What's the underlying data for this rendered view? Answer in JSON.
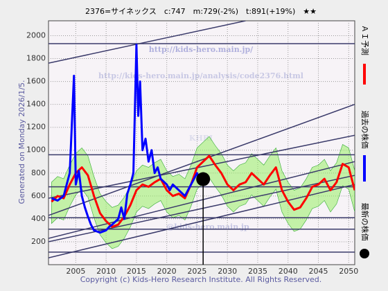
{
  "chart_data": {
    "type": "line",
    "title": "2376=サイネックス　c:747　m:729(-2%)　t:891(+19%)　★★",
    "side_note": "Generated on Monday 2026/1/5.",
    "footer": "Copyright (c) Kids-Hero Research Institute. All Rights Reserved.",
    "watermarks": [
      "http://kids-hero.main.jp/",
      "http://kids-hero.main.jp/analysis/code2376.html",
      "KHRI",
      "@kids-hero.main.jp"
    ],
    "xlim": [
      2000.5,
      2051
    ],
    "ylim": [
      0,
      2130
    ],
    "xticks": [
      2005,
      2010,
      2015,
      2020,
      2025,
      2030,
      2035,
      2040,
      2045,
      2050
    ],
    "yticks": [
      200,
      400,
      600,
      800,
      1000,
      1200,
      1400,
      1600,
      1800,
      2000
    ],
    "grid": true,
    "series": [
      {
        "name": "ＡＩ予測",
        "color": "#ff0000",
        "x": [
          2001,
          2002,
          2003,
          2004,
          2005,
          2006,
          2007,
          2008,
          2009,
          2010,
          2011,
          2012,
          2013,
          2014,
          2015,
          2016,
          2017,
          2018,
          2019,
          2020,
          2021,
          2022,
          2023,
          2024,
          2025,
          2026,
          2027,
          2028,
          2029,
          2030,
          2031,
          2032,
          2033,
          2034,
          2035,
          2036,
          2037,
          2038,
          2039,
          2040,
          2041,
          2042,
          2043,
          2044,
          2045,
          2046,
          2047,
          2048,
          2049,
          2050,
          2051
        ],
        "values": [
          550,
          600,
          580,
          700,
          800,
          850,
          780,
          600,
          450,
          380,
          330,
          350,
          420,
          520,
          650,
          700,
          680,
          720,
          750,
          650,
          600,
          620,
          580,
          700,
          850,
          900,
          950,
          870,
          800,
          700,
          650,
          700,
          720,
          800,
          750,
          700,
          780,
          850,
          650,
          550,
          480,
          500,
          580,
          680,
          700,
          750,
          650,
          720,
          880,
          850,
          650
        ]
      },
      {
        "name": "過去の株価",
        "color": "#0000ff",
        "x": [
          2001,
          2002,
          2003,
          2003.5,
          2004,
          2004.7,
          2005,
          2005.5,
          2006,
          2006.5,
          2007,
          2007.5,
          2008,
          2009,
          2010,
          2010.5,
          2011,
          2012,
          2012.5,
          2013,
          2013.5,
          2014,
          2014.5,
          2015,
          2015.3,
          2015.6,
          2016,
          2016.5,
          2017,
          2017.5,
          2018,
          2018.5,
          2019,
          2020,
          2020.5,
          2021,
          2022,
          2023,
          2024,
          2025,
          2025.5
        ],
        "values": [
          580,
          560,
          600,
          700,
          800,
          1650,
          700,
          820,
          600,
          500,
          420,
          350,
          300,
          280,
          300,
          330,
          350,
          400,
          500,
          400,
          620,
          700,
          800,
          1920,
          1300,
          1600,
          1000,
          1100,
          900,
          1000,
          800,
          850,
          750,
          700,
          650,
          700,
          650,
          600,
          700,
          800,
          720
        ]
      }
    ],
    "band": {
      "color": "#99ee66",
      "upper": [
        720,
        770,
        750,
        870,
        970,
        1020,
        950,
        770,
        620,
        550,
        500,
        520,
        590,
        690,
        820,
        870,
        850,
        890,
        920,
        820,
        770,
        790,
        750,
        870,
        1020,
        1070,
        1120,
        1040,
        970,
        870,
        820,
        870,
        890,
        970,
        920,
        870,
        950,
        1020,
        820,
        720,
        650,
        670,
        750,
        850,
        870,
        920,
        820,
        890,
        1050,
        1020,
        820
      ],
      "lower": [
        360,
        410,
        390,
        510,
        610,
        660,
        590,
        410,
        260,
        190,
        140,
        160,
        230,
        330,
        460,
        510,
        490,
        530,
        560,
        460,
        410,
        430,
        390,
        510,
        660,
        710,
        760,
        680,
        610,
        510,
        460,
        510,
        530,
        610,
        560,
        510,
        590,
        660,
        460,
        360,
        290,
        310,
        390,
        490,
        510,
        560,
        460,
        530,
        690,
        660,
        460
      ]
    },
    "latest": {
      "name": "最新の株価",
      "x": 2026,
      "y": 747,
      "color": "#000000"
    },
    "hlines": [
      1930,
      960,
      680,
      410,
      310,
      110
    ],
    "trend_lines": [
      [
        2000.5,
        1760,
        2033,
        2130
      ],
      [
        2000.5,
        430,
        2051,
        1400
      ],
      [
        2000.5,
        580,
        2051,
        1130
      ],
      [
        2000.5,
        230,
        2051,
        900
      ],
      [
        2000.5,
        200,
        2051,
        780
      ],
      [
        2000.5,
        60,
        2051,
        700
      ]
    ]
  }
}
